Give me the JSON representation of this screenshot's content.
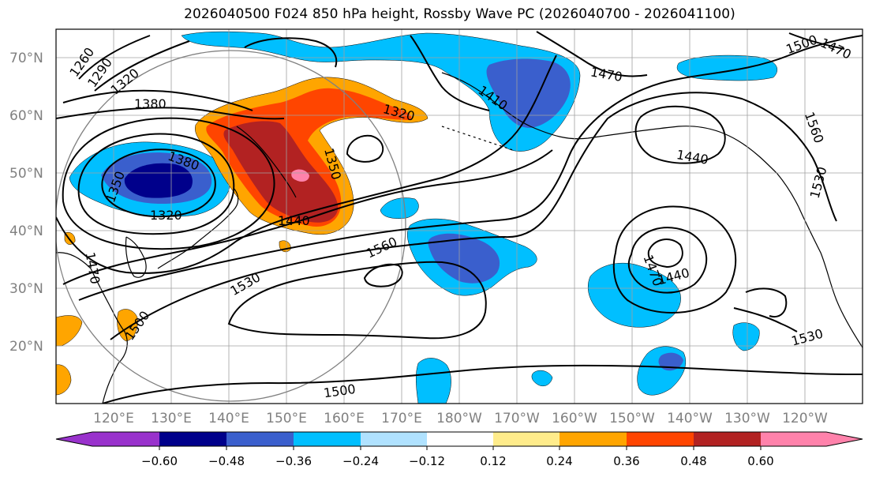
{
  "title": "2026040500 F024 850 hPa height, Rossby Wave PC (2026040700 - 2026041100)",
  "lat_labels": [
    "70°N",
    "60°N",
    "50°N",
    "40°N",
    "30°N",
    "20°N"
  ],
  "lon_labels": [
    "120°E",
    "130°E",
    "140°E",
    "150°E",
    "160°E",
    "170°E",
    "180°W",
    "170°W",
    "160°W",
    "150°W",
    "140°W",
    "130°W",
    "120°W"
  ],
  "contour_labels": [
    "1260",
    "1290",
    "1320",
    "1380",
    "1380",
    "1350",
    "1320",
    "1470",
    "1320",
    "1410",
    "1470",
    "1500",
    "1470",
    "1560",
    "1440",
    "1350",
    "1440",
    "1560",
    "1530",
    "1500",
    "1470",
    "1440",
    "1530",
    "1500",
    "1530"
  ],
  "colorbar": {
    "ticks": [
      "−0.60",
      "−0.48",
      "−0.36",
      "−0.24",
      "−0.12",
      "0.12",
      "0.24",
      "0.36",
      "0.48",
      "0.60"
    ],
    "colors": [
      "#9932cc",
      "#00008b",
      "#3a5fcd",
      "#00bfff",
      "#b0e2ff",
      "#ffffff",
      "#ffec8b",
      "#ffa500",
      "#ff4500",
      "#b22222",
      "#ff82ab"
    ]
  },
  "colors": {
    "contour": "#000000",
    "grid": "#a0a0a0",
    "coast": "#000000",
    "circle": "#808080"
  }
}
